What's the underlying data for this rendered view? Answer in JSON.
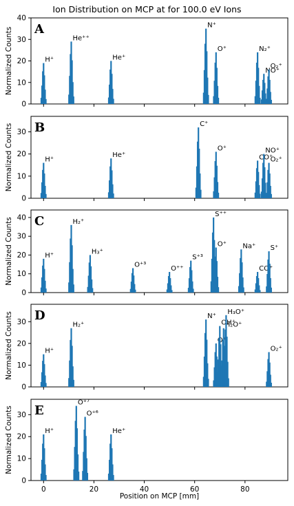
{
  "title": "Ion Distribution on MCP at  for 100.0 eV Ions",
  "xlabel": "Position on MCP [mm]",
  "ylabel": "Normalized Counts",
  "bar_color": "#1f77b4",
  "chart_data": [
    {
      "type": "bar",
      "panel": "A",
      "xlim": [
        -5,
        97
      ],
      "ylim": [
        0,
        40
      ],
      "yticks": [
        0,
        10,
        20,
        30,
        40
      ],
      "xticks": [
        0,
        20,
        40,
        60,
        80
      ],
      "show_xticklabels": false,
      "peaks": [
        {
          "ion": "H+",
          "label": "H⁺",
          "x": 0.0,
          "height": 19
        },
        {
          "ion": "He++",
          "label": "He⁺⁺",
          "x": 11.0,
          "height": 29
        },
        {
          "ion": "He+",
          "label": "He⁺",
          "x": 26.8,
          "height": 20
        },
        {
          "ion": "N+",
          "label": "N⁺",
          "x": 64.5,
          "height": 35
        },
        {
          "ion": "O+",
          "label": "O⁺",
          "x": 68.5,
          "height": 24
        },
        {
          "ion": "N2+",
          "label": "N₂⁺",
          "x": 85.0,
          "height": 24
        },
        {
          "ion": "NO+",
          "label": "NO⁺",
          "x": 87.5,
          "height": 14
        },
        {
          "ion": "O2+",
          "label": "O₂⁺",
          "x": 89.5,
          "height": 16
        }
      ]
    },
    {
      "type": "bar",
      "panel": "B",
      "xlim": [
        -5,
        97
      ],
      "ylim": [
        0,
        37
      ],
      "yticks": [
        0,
        10,
        20,
        30
      ],
      "xticks": [
        0,
        20,
        40,
        60,
        80
      ],
      "show_xticklabels": false,
      "peaks": [
        {
          "ion": "H+",
          "label": "H⁺",
          "x": 0.0,
          "height": 16
        },
        {
          "ion": "He+",
          "label": "He⁺",
          "x": 26.8,
          "height": 18
        },
        {
          "ion": "C+",
          "label": "C⁺",
          "x": 61.5,
          "height": 32
        },
        {
          "ion": "O+",
          "label": "O⁺",
          "x": 68.5,
          "height": 21
        },
        {
          "ion": "CO+",
          "label": "CO⁺",
          "x": 85.0,
          "height": 17
        },
        {
          "ion": "NO+",
          "label": "NO⁺",
          "x": 87.5,
          "height": 20
        },
        {
          "ion": "O2+",
          "label": "O₂⁺",
          "x": 89.5,
          "height": 16
        }
      ]
    },
    {
      "type": "bar",
      "panel": "C",
      "xlim": [
        -5,
        97
      ],
      "ylim": [
        0,
        44
      ],
      "yticks": [
        0,
        10,
        20,
        30,
        40
      ],
      "xticks": [
        0,
        20,
        40,
        60,
        80
      ],
      "show_xticklabels": false,
      "peaks": [
        {
          "ion": "H+",
          "label": "H⁺",
          "x": 0.0,
          "height": 18
        },
        {
          "ion": "H2+",
          "label": "H₂⁺",
          "x": 11.0,
          "height": 36
        },
        {
          "ion": "H3+",
          "label": "H₃⁺",
          "x": 18.5,
          "height": 20
        },
        {
          "ion": "O+3",
          "label": "O⁺³",
          "x": 35.5,
          "height": 13
        },
        {
          "ion": "O++",
          "label": "O⁺⁺",
          "x": 50.0,
          "height": 11
        },
        {
          "ion": "S+3",
          "label": "S⁺³",
          "x": 58.5,
          "height": 17
        },
        {
          "ion": "S++",
          "label": "S⁺⁺",
          "x": 67.5,
          "height": 40
        },
        {
          "ion": "O+",
          "label": "O⁺",
          "x": 68.5,
          "height": 24
        },
        {
          "ion": "Na+",
          "label": "Na⁺",
          "x": 78.5,
          "height": 23
        },
        {
          "ion": "CO+",
          "label": "CO⁺",
          "x": 85.0,
          "height": 11
        },
        {
          "ion": "S+",
          "label": "S⁺",
          "x": 89.5,
          "height": 22
        }
      ]
    },
    {
      "type": "bar",
      "panel": "D",
      "xlim": [
        -5,
        97
      ],
      "ylim": [
        0,
        38
      ],
      "yticks": [
        0,
        10,
        20,
        30
      ],
      "xticks": [
        0,
        20,
        40,
        60,
        80
      ],
      "show_xticklabels": false,
      "peaks": [
        {
          "ion": "H+",
          "label": "H⁺",
          "x": 0.0,
          "height": 15
        },
        {
          "ion": "H2+",
          "label": "H₂⁺",
          "x": 11.0,
          "height": 27
        },
        {
          "ion": "N+",
          "label": "N⁺",
          "x": 64.5,
          "height": 31
        },
        {
          "ion": "O+",
          "label": "O⁺",
          "x": 68.5,
          "height": 20
        },
        {
          "ion": "OH+",
          "label": "OH⁺",
          "x": 70.0,
          "height": 28
        },
        {
          "ion": "H2O+",
          "label": "H₂O⁺",
          "x": 71.5,
          "height": 27
        },
        {
          "ion": "H3O+",
          "label": "H₃O⁺",
          "x": 72.5,
          "height": 33
        },
        {
          "ion": "O2+",
          "label": "O₂⁺",
          "x": 89.5,
          "height": 16
        }
      ]
    },
    {
      "type": "bar",
      "panel": "E",
      "xlim": [
        -5,
        97
      ],
      "ylim": [
        0,
        37
      ],
      "yticks": [
        0,
        10,
        20,
        30
      ],
      "xticks": [
        0,
        20,
        40,
        60,
        80
      ],
      "show_xticklabels": true,
      "peaks": [
        {
          "ion": "H+",
          "label": "H⁺",
          "x": 0.0,
          "height": 21
        },
        {
          "ion": "O+7",
          "label": "O⁺⁷",
          "x": 13.0,
          "height": 34
        },
        {
          "ion": "O+6",
          "label": "O⁺⁶",
          "x": 16.5,
          "height": 29
        },
        {
          "ion": "He+",
          "label": "He⁺",
          "x": 26.8,
          "height": 21
        }
      ]
    }
  ]
}
